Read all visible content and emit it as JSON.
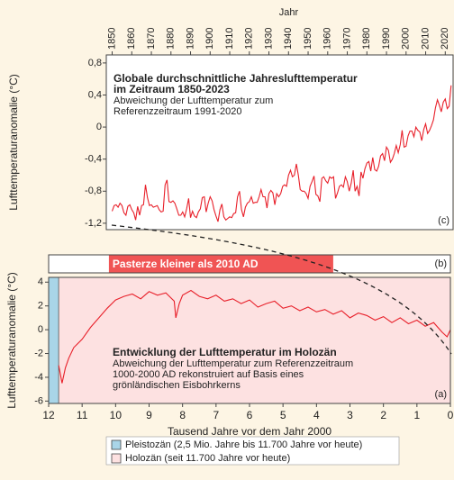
{
  "chart_data": [
    {
      "type": "line",
      "title_lines": [
        "Globale durchschnittliche Jahreslufttemperatur",
        "im Zeitraum 1850-2023"
      ],
      "subtitle_lines": [
        "Abweichung der Lufttemperatur zum",
        "Referenzzeitraum 1991-2020"
      ],
      "x_label": "Jahr",
      "y_label": "Lufttemperaturanomalie (°C)",
      "panel_label": "(c)",
      "color": "#e8202a",
      "xlim": [
        1847,
        2024
      ],
      "xticks": [
        1850,
        1860,
        1870,
        1880,
        1890,
        1900,
        1910,
        1920,
        1930,
        1940,
        1950,
        1960,
        1970,
        1980,
        1990,
        2000,
        2010,
        2020
      ],
      "ylim": [
        -1.28,
        0.9
      ],
      "yticks": [
        {
          "value": 0.8,
          "label": "0,8"
        },
        {
          "value": 0.4,
          "label": "0,4"
        },
        0,
        {
          "value": -0.4,
          "label": "-0,4"
        },
        {
          "value": -0.8,
          "label": "-0,8"
        },
        {
          "value": -1.2,
          "label": "-1,2"
        }
      ],
      "x": [
        1850,
        1851,
        1852,
        1853,
        1854,
        1855,
        1856,
        1857,
        1858,
        1859,
        1860,
        1861,
        1862,
        1863,
        1864,
        1865,
        1866,
        1867,
        1868,
        1869,
        1870,
        1871,
        1872,
        1873,
        1874,
        1875,
        1876,
        1877,
        1878,
        1879,
        1880,
        1881,
        1882,
        1883,
        1884,
        1885,
        1886,
        1887,
        1888,
        1889,
        1890,
        1891,
        1892,
        1893,
        1894,
        1895,
        1896,
        1897,
        1898,
        1899,
        1900,
        1901,
        1902,
        1903,
        1904,
        1905,
        1906,
        1907,
        1908,
        1909,
        1910,
        1911,
        1912,
        1913,
        1914,
        1915,
        1916,
        1917,
        1918,
        1919,
        1920,
        1921,
        1922,
        1923,
        1924,
        1925,
        1926,
        1927,
        1928,
        1929,
        1930,
        1931,
        1932,
        1933,
        1934,
        1935,
        1936,
        1937,
        1938,
        1939,
        1940,
        1941,
        1942,
        1943,
        1944,
        1945,
        1946,
        1947,
        1948,
        1949,
        1950,
        1951,
        1952,
        1953,
        1954,
        1955,
        1956,
        1957,
        1958,
        1959,
        1960,
        1961,
        1962,
        1963,
        1964,
        1965,
        1966,
        1967,
        1968,
        1969,
        1970,
        1971,
        1972,
        1973,
        1974,
        1975,
        1976,
        1977,
        1978,
        1979,
        1980,
        1981,
        1982,
        1983,
        1984,
        1985,
        1986,
        1987,
        1988,
        1989,
        1990,
        1991,
        1992,
        1993,
        1994,
        1995,
        1996,
        1997,
        1998,
        1999,
        2000,
        2001,
        2002,
        2003,
        2004,
        2005,
        2006,
        2007,
        2008,
        2009,
        2010,
        2011,
        2012,
        2013,
        2014,
        2015,
        2016,
        2017,
        2018,
        2019,
        2020,
        2021,
        2022,
        2023
      ],
      "values": [
        -1.05,
        -0.98,
        -0.97,
        -1.0,
        -0.95,
        -0.98,
        -1.07,
        -1.1,
        -0.99,
        -0.97,
        -1.03,
        -1.07,
        -1.16,
        -0.99,
        -1.1,
        -0.98,
        -0.97,
        -0.72,
        -0.88,
        -0.98,
        -0.97,
        -1.0,
        -0.99,
        -0.98,
        -1.03,
        -1.06,
        -1.05,
        -0.72,
        -0.66,
        -0.93,
        -0.94,
        -0.92,
        -0.95,
        -1.02,
        -1.1,
        -1.1,
        -1.06,
        -1.12,
        -1.02,
        -0.89,
        -1.13,
        -1.05,
        -1.11,
        -1.13,
        -1.06,
        -1.02,
        -0.88,
        -0.87,
        -1.06,
        -0.95,
        -0.87,
        -0.92,
        -1.03,
        -1.11,
        -1.18,
        -1.03,
        -0.96,
        -1.12,
        -1.16,
        -1.14,
        -1.12,
        -1.13,
        -1.08,
        -1.07,
        -0.87,
        -0.8,
        -1.03,
        -1.12,
        -1.0,
        -0.95,
        -0.93,
        -0.87,
        -0.95,
        -0.94,
        -0.94,
        -0.87,
        -0.78,
        -0.87,
        -0.87,
        -1.01,
        -0.83,
        -0.79,
        -0.82,
        -0.97,
        -0.83,
        -0.87,
        -0.83,
        -0.74,
        -0.72,
        -0.74,
        -0.6,
        -0.54,
        -0.62,
        -0.6,
        -0.46,
        -0.6,
        -0.78,
        -0.8,
        -0.8,
        -0.83,
        -0.89,
        -0.74,
        -0.68,
        -0.61,
        -0.84,
        -0.86,
        -0.93,
        -0.64,
        -0.62,
        -0.67,
        -0.7,
        -0.62,
        -0.64,
        -0.62,
        -0.89,
        -0.82,
        -0.74,
        -0.72,
        -0.75,
        -0.62,
        -0.68,
        -0.8,
        -0.7,
        -0.54,
        -0.8,
        -0.74,
        -0.86,
        -0.56,
        -0.64,
        -0.52,
        -0.45,
        -0.43,
        -0.55,
        -0.38,
        -0.53,
        -0.55,
        -0.49,
        -0.36,
        -0.33,
        -0.42,
        -0.25,
        -0.29,
        -0.44,
        -0.4,
        -0.33,
        -0.23,
        -0.32,
        -0.22,
        -0.04,
        -0.25,
        -0.24,
        -0.11,
        -0.05,
        -0.05,
        -0.12,
        0.0,
        -0.04,
        -0.06,
        -0.17,
        -0.03,
        0.04,
        -0.08,
        -0.04,
        0.02,
        0.09,
        0.24,
        0.34,
        0.27,
        0.19,
        0.31,
        0.35,
        0.23,
        0.26,
        0.52
      ]
    },
    {
      "type": "timeline",
      "panel_label": "(b)",
      "xlim": [
        12,
        0
      ],
      "bars": [
        {
          "label": "Pasterze kleiner als 2010 AD",
          "start": 10.2,
          "end": 3.5,
          "color": "#f05454"
        }
      ]
    },
    {
      "type": "line",
      "title_lines": [
        "Entwicklung der Lufttemperatur im Holozän"
      ],
      "subtitle_lines": [
        "Abweichung der Lufttemperatur zum Referenzzeitraum",
        "1000-2000 AD rekonstruiert auf Basis eines",
        "grönländischen Eisbohrkerns"
      ],
      "x_label": "Tausend Jahre vor dem Jahr 2000",
      "y_label": "Lufttemperaturanomalie (°C)",
      "panel_label": "(a)",
      "color": "#e8202a",
      "xlim": [
        12,
        0
      ],
      "xticks": [
        12,
        11,
        10,
        9,
        8,
        7,
        6,
        5,
        4,
        3,
        2,
        1,
        0
      ],
      "ylim": [
        -6.2,
        4.4
      ],
      "yticks": [
        4,
        2,
        0,
        -2,
        -4,
        -6
      ],
      "regions": [
        {
          "name": "Pleistozän (2,5 Mio. Jahre bis 11.700 Jahre vor heute)",
          "color": "#a9d5e8",
          "range": [
            12,
            11.7
          ]
        },
        {
          "name": "Holozän (seit 11.700 Jahre vor heute)",
          "color": "#fde1e1",
          "range": [
            11.7,
            0
          ]
        }
      ],
      "x": [
        11.7,
        11.6,
        11.5,
        11.4,
        11.25,
        11.0,
        10.75,
        10.5,
        10.25,
        10.0,
        9.75,
        9.5,
        9.25,
        9.0,
        8.75,
        8.5,
        8.25,
        8.2,
        8.1,
        8.0,
        7.75,
        7.5,
        7.25,
        7.0,
        6.75,
        6.5,
        6.25,
        6.0,
        5.75,
        5.5,
        5.25,
        5.0,
        4.75,
        4.5,
        4.25,
        4.0,
        3.75,
        3.5,
        3.25,
        3.0,
        2.75,
        2.5,
        2.25,
        2.0,
        1.75,
        1.5,
        1.25,
        1.0,
        0.75,
        0.5,
        0.25,
        0.1,
        0.0
      ],
      "values": [
        -3.0,
        -4.5,
        -3.2,
        -2.4,
        -1.5,
        -0.8,
        0.2,
        1.0,
        1.8,
        2.5,
        2.8,
        3.0,
        2.6,
        3.2,
        2.9,
        3.1,
        2.4,
        1.0,
        2.2,
        2.9,
        3.3,
        2.8,
        2.6,
        2.9,
        2.4,
        2.6,
        2.2,
        2.5,
        1.9,
        2.2,
        2.4,
        1.8,
        2.0,
        1.6,
        1.9,
        1.5,
        1.7,
        1.3,
        1.6,
        1.0,
        1.4,
        1.2,
        0.8,
        1.1,
        0.6,
        1.0,
        0.5,
        0.8,
        0.3,
        0.6,
        -0.2,
        -0.6,
        0.0
      ]
    }
  ]
}
